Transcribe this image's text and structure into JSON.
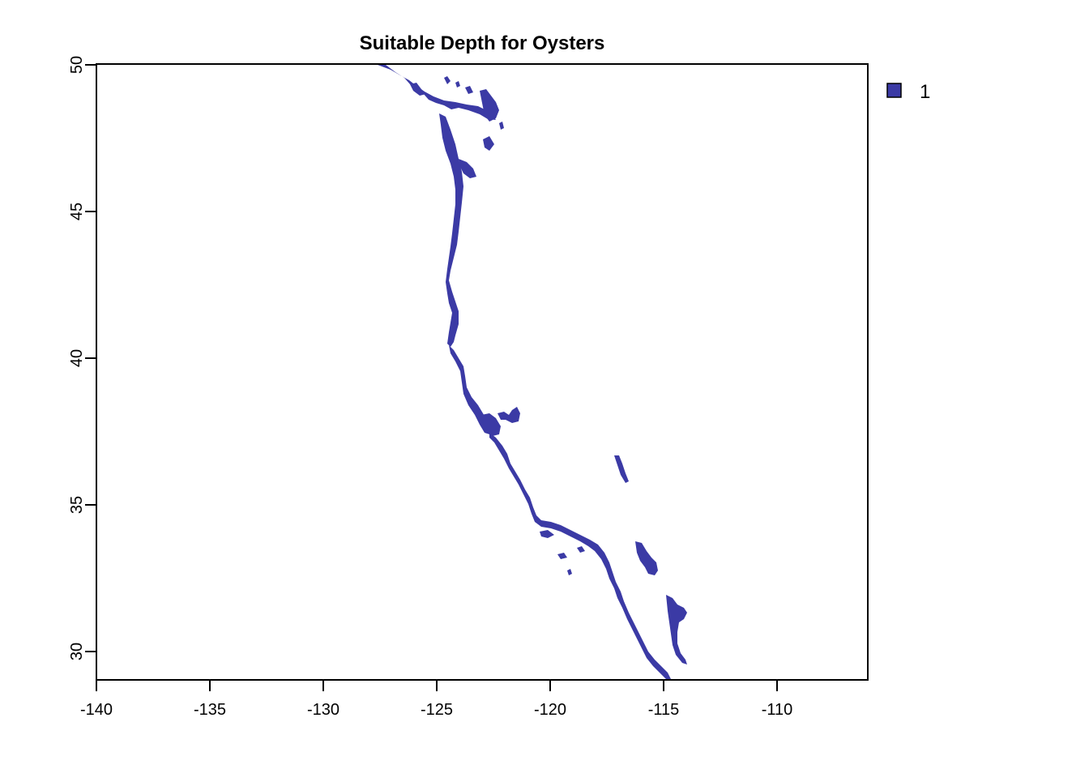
{
  "map": {
    "title": "Suitable Depth for Oysters",
    "legend": {
      "entries": [
        {
          "label": "1",
          "color": "#3b3aa5"
        }
      ],
      "placement": "right-top"
    },
    "fill_color": "#3b3aa5",
    "x_ticks": [
      "-140",
      "-135",
      "-130",
      "-125",
      "-120",
      "-115",
      "-110"
    ],
    "y_ticks": [
      "30",
      "35",
      "40",
      "45",
      "50"
    ],
    "x_range": [
      -140,
      -106
    ],
    "y_range": [
      29,
      50
    ]
  }
}
